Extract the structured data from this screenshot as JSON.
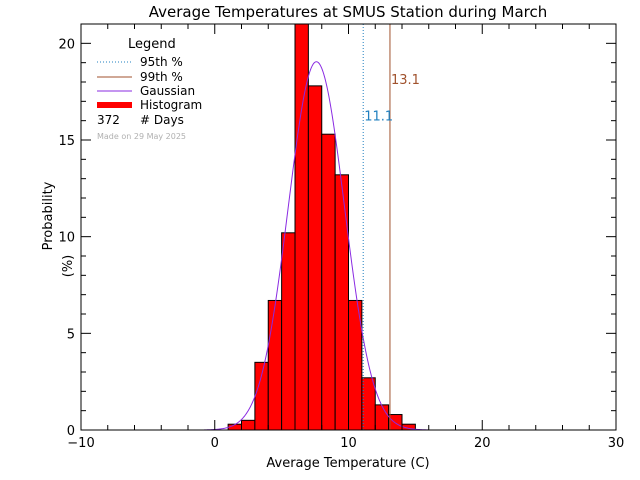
{
  "chart_data": {
    "type": "bar",
    "title": "Average Temperatures at SMUS Station during March",
    "xlabel": "Average Temperature (C)",
    "ylabel_line1": "Probability",
    "ylabel_line2": "(%)",
    "xlim": [
      -10,
      30
    ],
    "ylim": [
      0,
      21
    ],
    "xticks": [
      -10,
      0,
      10,
      20,
      30
    ],
    "yticks": [
      0,
      5,
      10,
      15,
      20
    ],
    "bin_width": 1,
    "histogram": {
      "bin_left_edges": [
        1,
        2,
        3,
        4,
        5,
        6,
        7,
        8,
        9,
        10,
        11,
        12,
        13,
        14
      ],
      "values": [
        0.3,
        0.5,
        3.5,
        6.7,
        10.2,
        21.0,
        17.8,
        15.3,
        13.2,
        6.7,
        2.7,
        1.3,
        0.8,
        0.3
      ],
      "color": "#ff0000"
    },
    "gaussian": {
      "mean": 7.6,
      "sigma": 2.1,
      "peak": 19.05,
      "color": "#8a2be2"
    },
    "p95": {
      "value": 11.1,
      "label": "11.1",
      "color": "#2080c0",
      "label_y": 16.0
    },
    "p99": {
      "value": 13.1,
      "label": "13.1",
      "color": "#a0522d",
      "label_y": 17.9
    },
    "legend": {
      "title": "Legend",
      "p95_label": "95th %",
      "p99_label": "99th %",
      "gaussian_label": "Gaussian",
      "histogram_label": "Histogram",
      "days_count": "372",
      "days_label": "# Days"
    },
    "note": "Made on 29 May 2025"
  }
}
